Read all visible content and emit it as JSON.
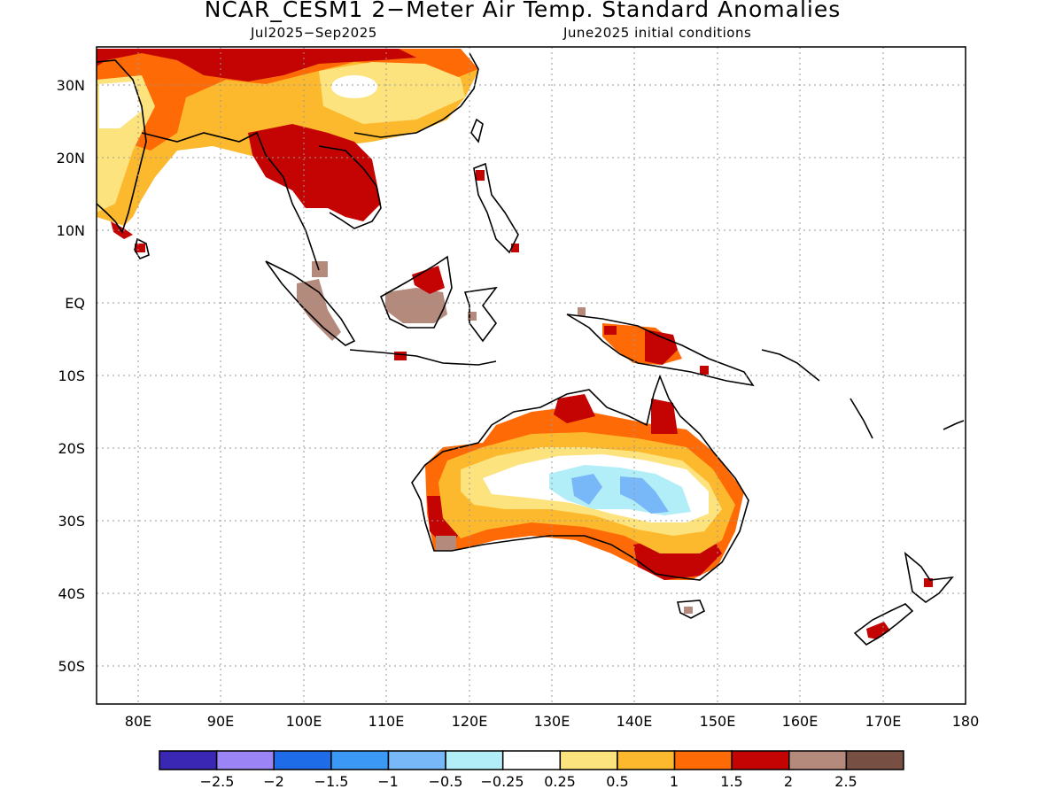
{
  "title": "NCAR_CESM1 2−Meter Air Temp. Standard Anomalies",
  "subtitle_left": "Jul2025−Sep2025",
  "subtitle_right": "June2025 initial conditions",
  "map": {
    "lon_range": [
      75,
      180
    ],
    "lat_range": [
      -55,
      35
    ],
    "grid": true
  },
  "lat_labels": [
    "30N",
    "20N",
    "10N",
    "EQ",
    "10S",
    "20S",
    "30S",
    "40S",
    "50S"
  ],
  "lon_labels": [
    "80E",
    "90E",
    "100E",
    "110E",
    "120E",
    "130E",
    "140E",
    "150E",
    "160E",
    "170E",
    "180"
  ],
  "colorbar": {
    "colors": [
      "#3a28b4",
      "#9b84f6",
      "#1e6ce8",
      "#3c98f5",
      "#78b8f8",
      "#b2eef8",
      "#ffffff",
      "#fde37e",
      "#fdb92d",
      "#fd6a06",
      "#c30402",
      "#b48a7d",
      "#774f43"
    ],
    "labels": [
      "−2.5",
      "−2",
      "−1.5",
      "−1",
      "−0.5",
      "−0.25",
      "0.25",
      "0.5",
      "1",
      "1.5",
      "2",
      "2.5"
    ]
  }
}
